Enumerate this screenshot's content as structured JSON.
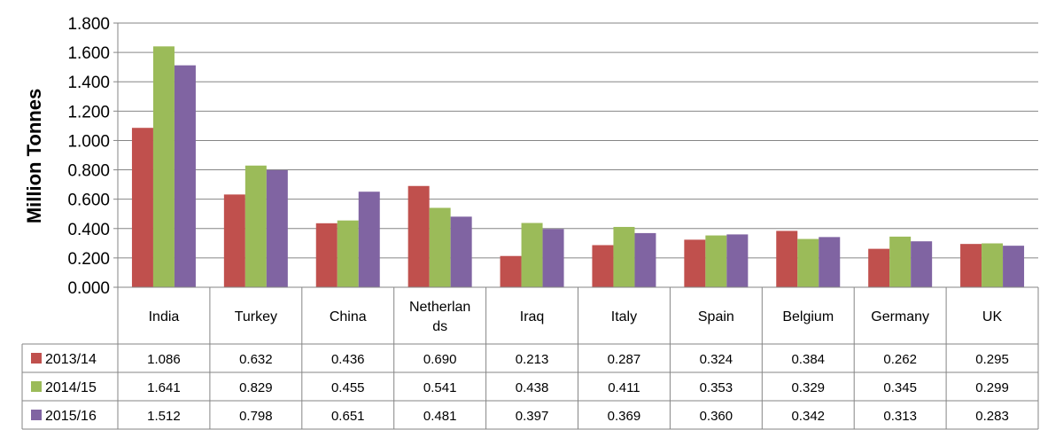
{
  "chart_data": {
    "type": "bar",
    "title": "",
    "xlabel": "",
    "ylabel": "Million Tonnes",
    "ylim": [
      0,
      1.8
    ],
    "y_ticks": [
      "0.000",
      "0.200",
      "0.400",
      "0.600",
      "0.800",
      "1.000",
      "1.200",
      "1.400",
      "1.600",
      "1.800"
    ],
    "grid": true,
    "legend": "data-table-left",
    "categories": [
      "India",
      "Turkey",
      "China",
      "Netherlands",
      "Iraq",
      "Italy",
      "Spain",
      "Belgium",
      "Germany",
      "UK"
    ],
    "category_labels": [
      [
        "India"
      ],
      [
        "Turkey"
      ],
      [
        "China"
      ],
      [
        "Netherlan",
        "ds"
      ],
      [
        "Iraq"
      ],
      [
        "Italy"
      ],
      [
        "Spain"
      ],
      [
        "Belgium"
      ],
      [
        "Germany"
      ],
      [
        "UK"
      ]
    ],
    "series": [
      {
        "name": "2013/14",
        "color": "#C0504D",
        "values": [
          1.086,
          0.632,
          0.436,
          0.69,
          0.213,
          0.287,
          0.324,
          0.384,
          0.262,
          0.295
        ],
        "labels": [
          "1.086",
          "0.632",
          "0.436",
          "0.690",
          "0.213",
          "0.287",
          "0.324",
          "0.384",
          "0.262",
          "0.295"
        ]
      },
      {
        "name": "2014/15",
        "color": "#9BBB59",
        "values": [
          1.641,
          0.829,
          0.455,
          0.541,
          0.438,
          0.411,
          0.353,
          0.329,
          0.345,
          0.299
        ],
        "labels": [
          "1.641",
          "0.829",
          "0.455",
          "0.541",
          "0.438",
          "0.411",
          "0.353",
          "0.329",
          "0.345",
          "0.299"
        ]
      },
      {
        "name": "2015/16",
        "color": "#8064A2",
        "values": [
          1.512,
          0.798,
          0.651,
          0.481,
          0.397,
          0.369,
          0.36,
          0.342,
          0.313,
          0.283
        ],
        "labels": [
          "1.512",
          "0.798",
          "0.651",
          "0.481",
          "0.397",
          "0.369",
          "0.360",
          "0.342",
          "0.313",
          "0.283"
        ]
      }
    ]
  }
}
